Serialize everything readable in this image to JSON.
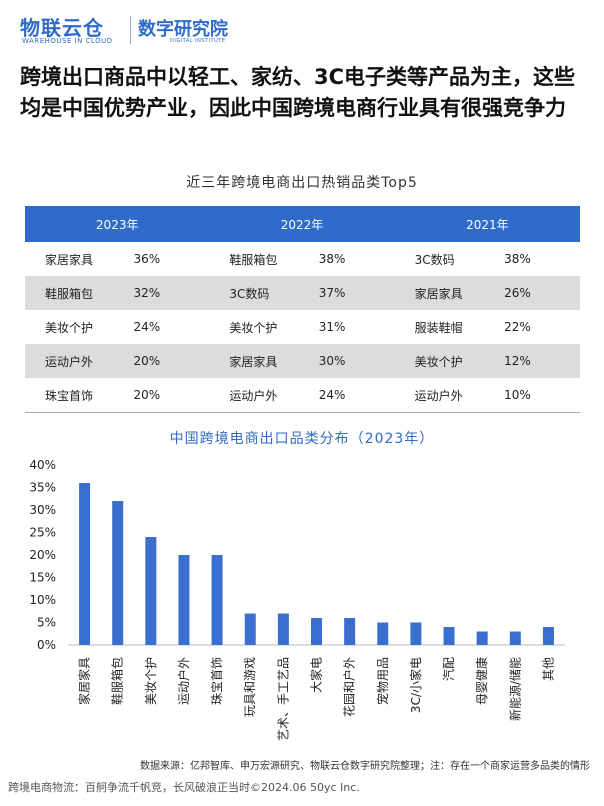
{
  "logo": {
    "main": "物联云仓",
    "sub": "WAREHOUSE IN CLOUD",
    "institute": "数字研究院",
    "institute_sub": "DIGITAL INSTITUTE"
  },
  "headline": "跨境出口商品中以轻工、家纺、3C电子类等产品为主，这些均是中国优势产业，因此中国跨境电商行业具有很强竞争力",
  "table": {
    "title": "近三年跨境电商出口热销品类Top5",
    "headers": [
      "2023年",
      "2022年",
      "2021年"
    ],
    "rows": [
      [
        "家居家具",
        "36%",
        "鞋服箱包",
        "38%",
        "3C数码",
        "38%"
      ],
      [
        "鞋服箱包",
        "32%",
        "3C数码",
        "37%",
        "家居家具",
        "26%"
      ],
      [
        "美妆个护",
        "24%",
        "美妆个护",
        "31%",
        "服装鞋帽",
        "22%"
      ],
      [
        "运动户外",
        "20%",
        "家居家具",
        "30%",
        "美妆个护",
        "12%"
      ],
      [
        "珠宝首饰",
        "20%",
        "运动户外",
        "24%",
        "运动户外",
        "10%"
      ]
    ]
  },
  "chart_data": {
    "type": "bar",
    "title": "中国跨境电商出口品类分布（2023年）",
    "categories": [
      "家居家具",
      "鞋服箱包",
      "美妆个护",
      "运动户外",
      "珠宝首饰",
      "玩具和游戏",
      "艺术、手工艺品",
      "大家电",
      "花园和户外",
      "宠物用品",
      "3C/小家电",
      "汽配",
      "母婴健康",
      "新能源/储能",
      "其他"
    ],
    "values": [
      36,
      32,
      24,
      20,
      20,
      7,
      7,
      6,
      6,
      5,
      5,
      4,
      3,
      3,
      4
    ],
    "ylim": [
      0,
      40
    ],
    "yticks": [
      "0%",
      "5%",
      "10%",
      "15%",
      "20%",
      "25%",
      "30%",
      "35%",
      "40%"
    ],
    "xlabel": "",
    "ylabel": "",
    "grid": false,
    "bar_color": "#3a6fd0"
  },
  "footnote": "数据来源：亿邦智库、申万宏源研究、物联云仓数字研究院整理；注：存在一个商家运营多品类的情形",
  "footer": "跨境电商物流：百舸争流千帆竞，长风破浪正当时©2024.06 50yc Inc."
}
